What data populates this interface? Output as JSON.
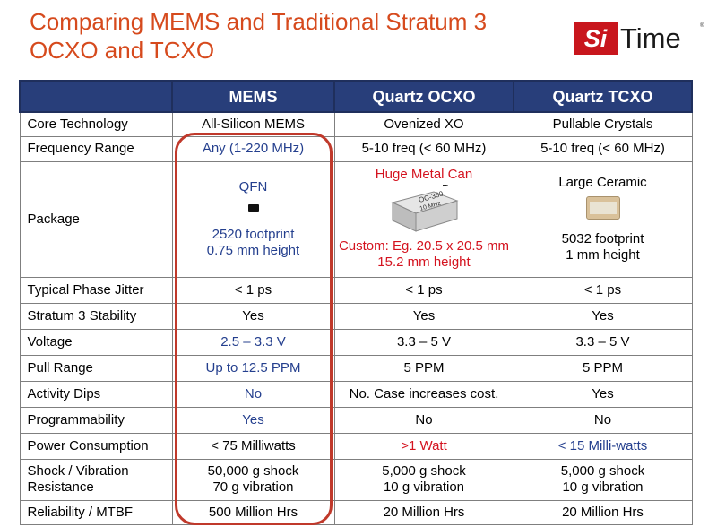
{
  "title_line1": "Comparing MEMS and Traditional Stratum 3",
  "title_line2": "OCXO and TCXO",
  "logo": {
    "si": "Si",
    "time": "Time",
    "tm": "®"
  },
  "headers": [
    "",
    "MEMS",
    "Quartz OCXO",
    "Quartz TCXO"
  ],
  "rows": {
    "core": {
      "label": "Core Technology",
      "mems": "All-Silicon MEMS",
      "ocxo": "Ovenized XO",
      "tcxo": "Pullable Crystals"
    },
    "freq": {
      "label": "Frequency Range",
      "mems": "Any (1-220 MHz)",
      "ocxo": "5-10 freq (< 60 MHz)",
      "tcxo": "5-10 freq (< 60 MHz)"
    },
    "package": {
      "label": "Package",
      "mems_top": "QFN",
      "mems_line1": "2520 footprint",
      "mems_line2": "0.75 mm height",
      "ocxo_top": "Huge Metal Can",
      "ocxo_can_text1": "OC-360",
      "ocxo_can_text2": "10 MHz",
      "ocxo_line1": "Custom: Eg. 20.5 x 20.5 mm",
      "ocxo_line2": "15.2 mm height",
      "tcxo_top": "Large Ceramic",
      "tcxo_line1": "5032 footprint",
      "tcxo_line2": "1 mm height"
    },
    "jitter": {
      "label": "Typical Phase Jitter",
      "mems": "< 1 ps",
      "ocxo": "< 1 ps",
      "tcxo": "< 1 ps"
    },
    "stability": {
      "label": "Stratum 3 Stability",
      "mems": "Yes",
      "ocxo": "Yes",
      "tcxo": "Yes"
    },
    "voltage": {
      "label": "Voltage",
      "mems": "2.5 – 3.3 V",
      "ocxo": "3.3 – 5 V",
      "tcxo": "3.3 – 5 V"
    },
    "pull": {
      "label": "Pull Range",
      "mems": "Up to 12.5 PPM",
      "ocxo": "5 PPM",
      "tcxo": "5 PPM"
    },
    "dips": {
      "label": "Activity Dips",
      "mems": "No",
      "ocxo": "No. Case increases cost.",
      "tcxo": "Yes"
    },
    "prog": {
      "label": "Programmability",
      "mems": "Yes",
      "ocxo": "No",
      "tcxo": "No"
    },
    "power": {
      "label": "Power Consumption",
      "mems": "< 75 Milliwatts",
      "ocxo": ">1 Watt",
      "tcxo": "< 15 Milli-watts"
    },
    "shock": {
      "label1": "Shock / Vibration",
      "label2": "Resistance",
      "mems1": "50,000 g shock",
      "mems2": "70 g vibration",
      "ocxo1": "5,000 g shock",
      "ocxo2": "10 g vibration",
      "tcxo1": "5,000 g shock",
      "tcxo2": "10 g vibration"
    },
    "mtbf": {
      "label": "Reliability / MTBF",
      "mems": "500 Million Hrs",
      "ocxo": "20 Million Hrs",
      "tcxo": "20 Million Hrs"
    }
  },
  "colors": {
    "title": "#d64a1d",
    "header_bg": "#283e7a",
    "highlight": "#c0392b",
    "mems_blue": "#243f8e",
    "warning_red": "#d4131f"
  }
}
